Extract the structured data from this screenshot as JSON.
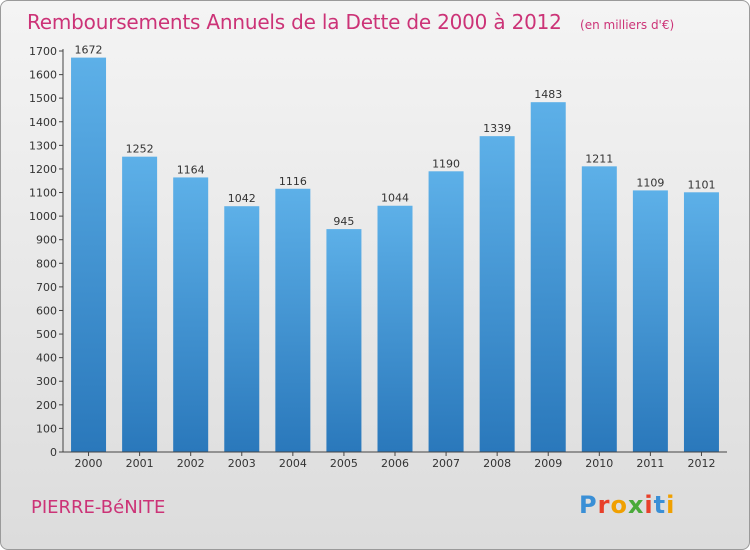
{
  "header": {
    "title": "Remboursements Annuels de la Dette de 2000 à 2012",
    "unit_note": "(en milliers d'€)"
  },
  "footer": {
    "city": "PIERRE-BéNITE",
    "logo_text": "Proxiti"
  },
  "colors": {
    "title": "#cc3377",
    "bar_top": "#5db0e8",
    "bar_bottom": "#2a78bb"
  },
  "chart_data": {
    "type": "bar",
    "categories": [
      "2000",
      "2001",
      "2002",
      "2003",
      "2004",
      "2005",
      "2006",
      "2007",
      "2008",
      "2009",
      "2010",
      "2011",
      "2012"
    ],
    "values": [
      1672,
      1252,
      1164,
      1042,
      1116,
      945,
      1044,
      1190,
      1339,
      1483,
      1211,
      1109,
      1101
    ],
    "title": "Remboursements Annuels de la Dette de 2000 à 2012",
    "xlabel": "",
    "ylabel": "",
    "ylim": [
      0,
      1700
    ],
    "yticks": [
      0,
      100,
      200,
      300,
      400,
      500,
      600,
      700,
      800,
      900,
      1000,
      1100,
      1200,
      1300,
      1400,
      1500,
      1600,
      1700
    ],
    "grid": false,
    "legend": "none"
  }
}
